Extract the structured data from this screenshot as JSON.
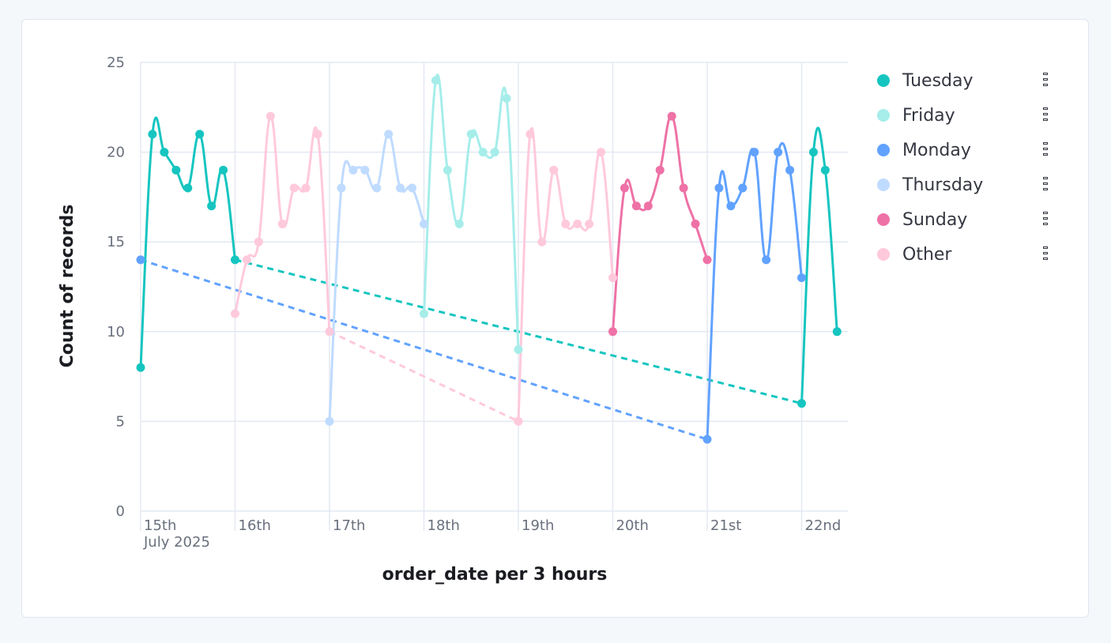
{
  "chart_data": {
    "type": "line",
    "xlabel": "order_date per 3 hours",
    "ylabel": "Count of records",
    "ylim": [
      0,
      25
    ],
    "yticks": [
      0,
      5,
      10,
      15,
      20,
      25
    ],
    "xlim": [
      "2025-07-15T00:00",
      "2025-07-22T06:00"
    ],
    "x_tick_labels": [
      {
        "x": "2025-07-15T00:00",
        "label": "15th",
        "sublabel": "July 2025"
      },
      {
        "x": "2025-07-16T00:00",
        "label": "16th"
      },
      {
        "x": "2025-07-17T00:00",
        "label": "17th"
      },
      {
        "x": "2025-07-18T00:00",
        "label": "18th"
      },
      {
        "x": "2025-07-19T00:00",
        "label": "19th"
      },
      {
        "x": "2025-07-20T00:00",
        "label": "20th"
      },
      {
        "x": "2025-07-21T00:00",
        "label": "21st"
      },
      {
        "x": "2025-07-22T00:00",
        "label": "22nd"
      }
    ],
    "grid": true,
    "legend_position": "right",
    "series": [
      {
        "name": "Tuesday",
        "color": "#16c5c0",
        "segments": [
          {
            "points": [
              [
                "2025-07-15T00:00",
                8
              ],
              [
                "2025-07-15T03:00",
                21
              ],
              [
                "2025-07-15T06:00",
                20
              ],
              [
                "2025-07-15T09:00",
                19
              ],
              [
                "2025-07-15T12:00",
                18
              ],
              [
                "2025-07-15T15:00",
                21
              ],
              [
                "2025-07-15T18:00",
                17
              ],
              [
                "2025-07-15T21:00",
                19
              ],
              [
                "2025-07-16T00:00",
                14
              ]
            ]
          },
          {
            "points": [
              [
                "2025-07-22T00:00",
                6
              ],
              [
                "2025-07-22T03:00",
                20
              ],
              [
                "2025-07-22T06:00",
                19
              ],
              [
                "2025-07-22T09:00",
                10
              ]
            ]
          }
        ]
      },
      {
        "name": "Friday",
        "color": "#a6edea",
        "segments": [
          {
            "points": [
              [
                "2025-07-18T00:00",
                11
              ],
              [
                "2025-07-18T03:00",
                24
              ],
              [
                "2025-07-18T06:00",
                19
              ],
              [
                "2025-07-18T09:00",
                16
              ],
              [
                "2025-07-18T12:00",
                21
              ],
              [
                "2025-07-18T15:00",
                20
              ],
              [
                "2025-07-18T18:00",
                20
              ],
              [
                "2025-07-18T21:00",
                23
              ],
              [
                "2025-07-19T00:00",
                9
              ]
            ]
          }
        ]
      },
      {
        "name": "Monday",
        "color": "#61a2ff",
        "segments": [
          {
            "points": [
              [
                "2025-07-15T00:00",
                14
              ]
            ]
          },
          {
            "points": [
              [
                "2025-07-21T00:00",
                4
              ],
              [
                "2025-07-21T03:00",
                18
              ],
              [
                "2025-07-21T06:00",
                17
              ],
              [
                "2025-07-21T09:00",
                18
              ],
              [
                "2025-07-21T12:00",
                20
              ],
              [
                "2025-07-21T15:00",
                14
              ],
              [
                "2025-07-21T18:00",
                20
              ],
              [
                "2025-07-21T21:00",
                19
              ],
              [
                "2025-07-22T00:00",
                13
              ]
            ]
          }
        ]
      },
      {
        "name": "Thursday",
        "color": "#bfdbff",
        "segments": [
          {
            "points": [
              [
                "2025-07-17T00:00",
                5
              ],
              [
                "2025-07-17T03:00",
                18
              ],
              [
                "2025-07-17T06:00",
                19
              ],
              [
                "2025-07-17T09:00",
                19
              ],
              [
                "2025-07-17T12:00",
                18
              ],
              [
                "2025-07-17T15:00",
                21
              ],
              [
                "2025-07-17T18:00",
                18
              ],
              [
                "2025-07-17T21:00",
                18
              ],
              [
                "2025-07-18T00:00",
                16
              ]
            ]
          }
        ]
      },
      {
        "name": "Sunday",
        "color": "#ee72a6",
        "segments": [
          {
            "points": [
              [
                "2025-07-20T00:00",
                10
              ],
              [
                "2025-07-20T03:00",
                18
              ],
              [
                "2025-07-20T06:00",
                17
              ],
              [
                "2025-07-20T09:00",
                17
              ],
              [
                "2025-07-20T12:00",
                19
              ],
              [
                "2025-07-20T15:00",
                22
              ],
              [
                "2025-07-20T18:00",
                18
              ],
              [
                "2025-07-20T21:00",
                16
              ],
              [
                "2025-07-21T00:00",
                14
              ]
            ]
          }
        ]
      },
      {
        "name": "Other",
        "color": "#ffc9dc",
        "segments": [
          {
            "points": [
              [
                "2025-07-16T00:00",
                11
              ],
              [
                "2025-07-16T03:00",
                14
              ],
              [
                "2025-07-16T06:00",
                15
              ],
              [
                "2025-07-16T09:00",
                22
              ],
              [
                "2025-07-16T12:00",
                16
              ],
              [
                "2025-07-16T15:00",
                18
              ],
              [
                "2025-07-16T18:00",
                18
              ],
              [
                "2025-07-16T21:00",
                21
              ],
              [
                "2025-07-17T00:00",
                10
              ]
            ]
          },
          {
            "points": [
              [
                "2025-07-19T00:00",
                5
              ],
              [
                "2025-07-19T03:00",
                21
              ],
              [
                "2025-07-19T06:00",
                15
              ],
              [
                "2025-07-19T09:00",
                19
              ],
              [
                "2025-07-19T12:00",
                16
              ],
              [
                "2025-07-19T15:00",
                16
              ],
              [
                "2025-07-19T18:00",
                16
              ],
              [
                "2025-07-19T21:00",
                20
              ],
              [
                "2025-07-20T00:00",
                13
              ]
            ]
          }
        ]
      }
    ],
    "gap_connectors": [
      {
        "series": "Tuesday",
        "from": [
          "2025-07-16T00:00",
          14
        ],
        "to": [
          "2025-07-22T00:00",
          6
        ]
      },
      {
        "series": "Monday",
        "from": [
          "2025-07-15T00:00",
          14
        ],
        "to": [
          "2025-07-21T00:00",
          4
        ]
      },
      {
        "series": "Other",
        "from": [
          "2025-07-17T00:00",
          10
        ],
        "to": [
          "2025-07-19T00:00",
          5
        ]
      }
    ]
  },
  "legend": {
    "items": [
      {
        "label": "Tuesday",
        "color": "#16c5c0"
      },
      {
        "label": "Friday",
        "color": "#a6edea"
      },
      {
        "label": "Monday",
        "color": "#61a2ff"
      },
      {
        "label": "Thursday",
        "color": "#bfdbff"
      },
      {
        "label": "Sunday",
        "color": "#ee72a6"
      },
      {
        "label": "Other",
        "color": "#ffc9dc"
      }
    ],
    "menu_icon": "vertical-dots-icon"
  },
  "colors": {
    "grid": "#e3e8f2",
    "axis_text": "#69707d",
    "title_text": "#1a1c21"
  }
}
